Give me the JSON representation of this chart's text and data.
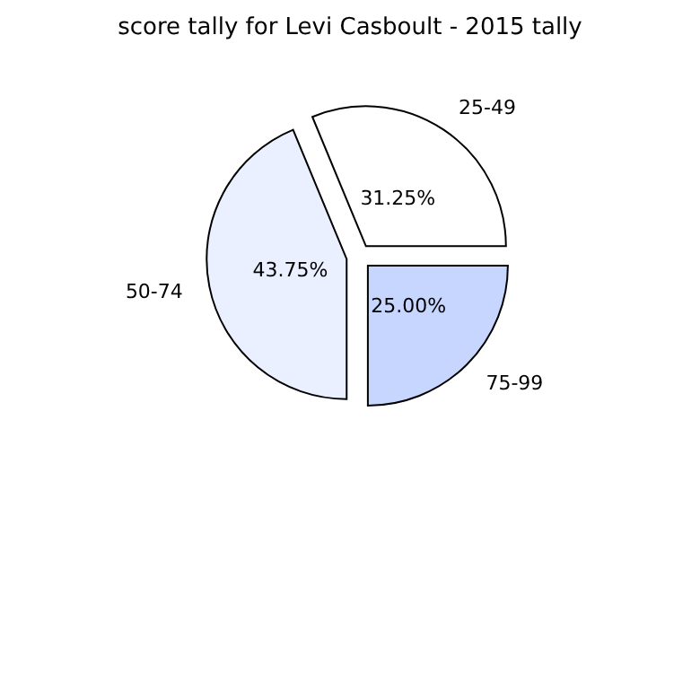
{
  "chart_data": {
    "type": "pie",
    "title": "score tally for Levi Casboult - 2015 tally",
    "categories": [
      "25-49",
      "50-74",
      "75-99"
    ],
    "values": [
      31.25,
      43.75,
      25
    ],
    "colors": [
      "#ffffff",
      "#eaf0ff",
      "#c6d6ff"
    ],
    "value_labels": [
      "31.25%",
      "43.75%",
      "25.00%"
    ],
    "legend": false
  }
}
